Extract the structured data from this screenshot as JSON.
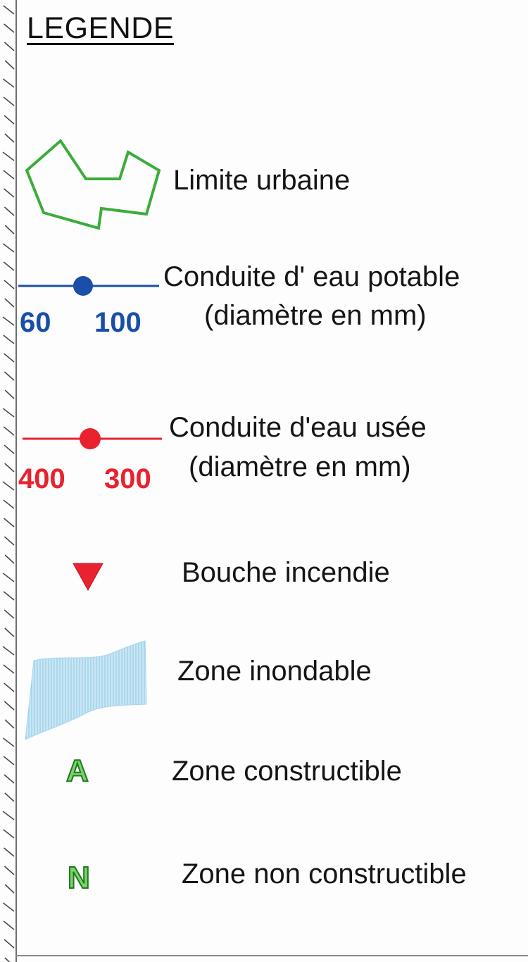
{
  "legend": {
    "title": "LEGENDE",
    "items": [
      {
        "id": "limite-urbaine",
        "label": "Limite urbaine",
        "symbol": "green-polygon-outline",
        "color": "#3cac3c"
      },
      {
        "id": "eau-potable",
        "label_line1": "Conduite d' eau potable",
        "label_line2": "(diamètre en mm)",
        "symbol": "blue-line-with-dot",
        "color": "#1a4fa8",
        "diameters": [
          "60",
          "100"
        ]
      },
      {
        "id": "eau-usee",
        "label_line1": "Conduite d'eau usée",
        "label_line2": "(diamètre en mm)",
        "symbol": "red-line-with-dot",
        "color": "#e8222e",
        "diameters": [
          "400",
          "300"
        ]
      },
      {
        "id": "bouche-incendie",
        "label": "Bouche incendie",
        "symbol": "red-down-triangle",
        "color": "#e8222e"
      },
      {
        "id": "zone-inondable",
        "label": "Zone inondable",
        "symbol": "light-blue-hatched-area",
        "color": "#b8dff0"
      },
      {
        "id": "zone-constructible",
        "label": "Zone constructible",
        "symbol": "letter-icon",
        "letter": "A",
        "color": "#2f9b2f"
      },
      {
        "id": "zone-non-constructible",
        "label": "Zone non constructible",
        "symbol": "letter-icon",
        "letter": "N",
        "color": "#2f9b2f"
      }
    ]
  }
}
